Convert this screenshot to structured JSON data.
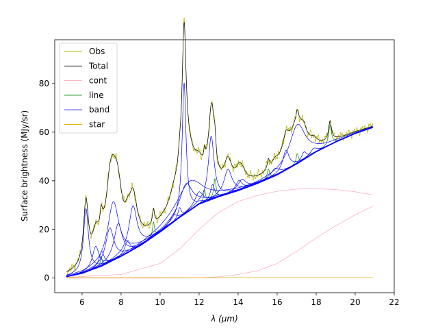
{
  "chart_data": {
    "type": "line",
    "xlabel": "λ (μm)",
    "ylabel": "Surface brightness (MJy/sr)",
    "xlim": [
      4.6,
      22
    ],
    "ylim": [
      -6,
      98
    ],
    "xticks": [
      6,
      8,
      10,
      12,
      14,
      16,
      18,
      20,
      22
    ],
    "yticks": [
      0,
      20,
      40,
      60,
      80
    ],
    "grid": false,
    "legend_position": "top-left",
    "legend": [
      {
        "label": "Obs",
        "color": "#b5b500"
      },
      {
        "label": "Total",
        "color": "#000000"
      },
      {
        "label": "cont",
        "color": "#ffb0c0"
      },
      {
        "label": "line",
        "color": "#008000"
      },
      {
        "label": "band",
        "color": "#0000ff"
      },
      {
        "label": "star",
        "color": "#e0b000"
      }
    ],
    "continuum_points": [
      [
        5.2,
        0.6
      ],
      [
        6,
        2
      ],
      [
        7,
        5
      ],
      [
        8,
        9
      ],
      [
        9,
        13.5
      ],
      [
        10,
        19
      ],
      [
        11,
        25
      ],
      [
        12,
        30.5
      ],
      [
        13,
        33.5
      ],
      [
        14,
        36
      ],
      [
        15,
        39
      ],
      [
        16,
        42.5
      ],
      [
        17,
        47
      ],
      [
        18,
        52
      ],
      [
        19,
        56
      ],
      [
        20,
        59.5
      ],
      [
        20.9,
        62
      ]
    ],
    "cont_components": [
      {
        "points": [
          [
            5.2,
            0.3
          ],
          [
            8,
            1.5
          ],
          [
            10,
            6
          ],
          [
            11,
            12
          ],
          [
            12,
            20
          ],
          [
            13,
            27
          ],
          [
            14,
            31.5
          ],
          [
            15,
            34
          ],
          [
            16,
            35.7
          ],
          [
            17,
            36.6
          ],
          [
            18,
            36.8
          ],
          [
            19,
            36.4
          ],
          [
            20,
            35.5
          ],
          [
            20.9,
            34.2
          ]
        ]
      },
      {
        "points": [
          [
            5.2,
            0
          ],
          [
            10,
            0
          ],
          [
            12,
            0.2
          ],
          [
            13,
            0.5
          ],
          [
            14,
            1.5
          ],
          [
            15,
            3
          ],
          [
            16,
            6
          ],
          [
            17,
            11
          ],
          [
            18,
            16.5
          ],
          [
            19,
            21.5
          ],
          [
            20,
            26
          ],
          [
            20.9,
            29.5
          ]
        ]
      }
    ],
    "star_value": 0.2,
    "bands": [
      {
        "center": 6.2,
        "height": 26,
        "width": 0.15
      },
      {
        "center": 6.7,
        "height": 9,
        "width": 0.2
      },
      {
        "center": 7.0,
        "height": 6,
        "width": 0.15
      },
      {
        "center": 7.42,
        "height": 14,
        "width": 0.25
      },
      {
        "center": 7.6,
        "height": 24,
        "width": 0.35
      },
      {
        "center": 7.85,
        "height": 14,
        "width": 0.25
      },
      {
        "center": 8.33,
        "height": 5,
        "width": 0.15
      },
      {
        "center": 8.61,
        "height": 18,
        "width": 0.25
      },
      {
        "center": 10.68,
        "height": 3,
        "width": 0.2
      },
      {
        "center": 11.0,
        "height": 4,
        "width": 0.1
      },
      {
        "center": 11.23,
        "height": 54,
        "width": 0.12
      },
      {
        "center": 11.33,
        "height": 12,
        "width": 0.4
      },
      {
        "center": 11.5,
        "height": 12,
        "width": 0.8
      },
      {
        "center": 11.99,
        "height": 5,
        "width": 0.25
      },
      {
        "center": 12.62,
        "height": 26,
        "width": 0.18
      },
      {
        "center": 12.69,
        "height": 6,
        "width": 0.12
      },
      {
        "center": 13.48,
        "height": 10,
        "width": 0.25
      },
      {
        "center": 14.04,
        "height": 4,
        "width": 0.2
      },
      {
        "center": 14.19,
        "height": 4,
        "width": 0.25
      },
      {
        "center": 15.9,
        "height": 3,
        "width": 0.25
      },
      {
        "center": 16.45,
        "height": 8,
        "width": 0.2
      },
      {
        "center": 17.04,
        "height": 16,
        "width": 0.5
      },
      {
        "center": 17.375,
        "height": 3,
        "width": 0.15
      },
      {
        "center": 17.87,
        "height": 2,
        "width": 0.2
      }
    ],
    "lines": [
      {
        "center": 6.98,
        "height": 4,
        "width": 0.05
      },
      {
        "center": 9.66,
        "height": 6,
        "width": 0.06
      },
      {
        "center": 12.28,
        "height": 5,
        "width": 0.06
      },
      {
        "center": 12.81,
        "height": 8,
        "width": 0.07
      },
      {
        "center": 15.55,
        "height": 4,
        "width": 0.07
      },
      {
        "center": 17.03,
        "height": 4,
        "width": 0.07
      },
      {
        "center": 18.71,
        "height": 8,
        "width": 0.09
      }
    ],
    "obs_noise_amplitude": 1.5
  }
}
